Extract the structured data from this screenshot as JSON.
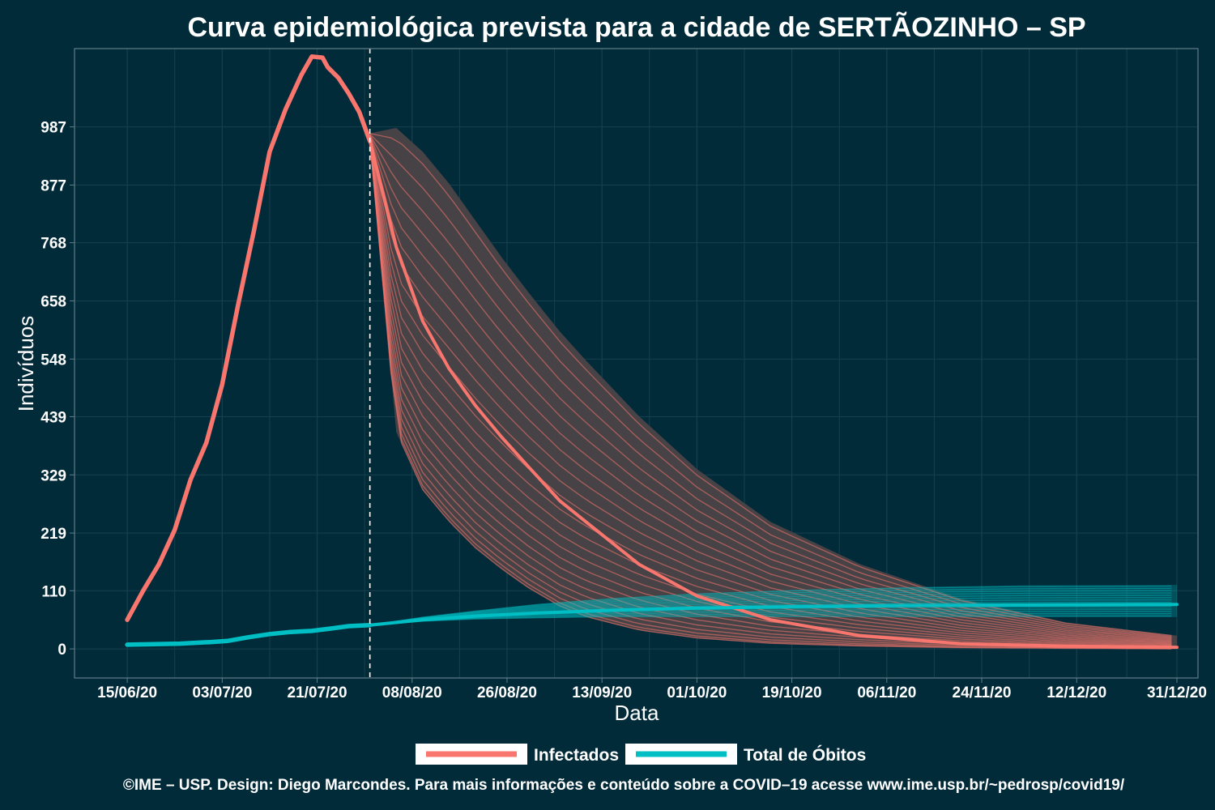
{
  "chart_data": {
    "type": "line",
    "title": "Curva epidemiológica prevista para a cidade de SERTÃOZINHO – SP",
    "xlabel": "Data",
    "ylabel": "Indivíduos",
    "x_ticks": [
      "15/06/20",
      "03/07/20",
      "21/07/20",
      "08/08/20",
      "26/08/20",
      "13/09/20",
      "01/10/20",
      "19/10/20",
      "06/11/20",
      "24/11/20",
      "12/12/20",
      "31/12/20"
    ],
    "y_ticks": [
      "0",
      "110",
      "219",
      "329",
      "439",
      "548",
      "658",
      "768",
      "877",
      "987"
    ],
    "ylim": [
      -55,
      1135
    ],
    "xlim": [
      "2020-06-05",
      "2021-01-04"
    ],
    "grid": true,
    "forecast_start": "2020-07-31",
    "colors": {
      "background": "#022b3a",
      "infectados": "#f8766d",
      "obitos": "#00bfc4",
      "band": "#4a4347",
      "grid": "#17404e",
      "panel_border": "#5f7e89"
    },
    "legend": {
      "position": "bottom",
      "items": [
        {
          "name": "Infectados",
          "color": "#f8766d"
        },
        {
          "name": "Total de Óbitos",
          "color": "#00bfc4"
        }
      ]
    },
    "series": [
      {
        "name": "Infectados",
        "type": "observed",
        "x": [
          "2020-06-15",
          "2020-06-18",
          "2020-06-21",
          "2020-06-24",
          "2020-06-27",
          "2020-06-30",
          "2020-07-03",
          "2020-07-06",
          "2020-07-09",
          "2020-07-12",
          "2020-07-15",
          "2020-07-18",
          "2020-07-20",
          "2020-07-22",
          "2020-07-23",
          "2020-07-25",
          "2020-07-27",
          "2020-07-29",
          "2020-07-31"
        ],
        "y": [
          55,
          110,
          160,
          225,
          320,
          390,
          500,
          650,
          790,
          940,
          1020,
          1085,
          1120,
          1118,
          1100,
          1080,
          1050,
          1015,
          960
        ]
      },
      {
        "name": "Infectados",
        "type": "forecast-median",
        "x": [
          "2020-07-31",
          "2020-08-05",
          "2020-08-10",
          "2020-08-15",
          "2020-08-20",
          "2020-08-25",
          "2020-08-30",
          "2020-09-05",
          "2020-09-10",
          "2020-09-20",
          "2020-10-01",
          "2020-10-15",
          "2020-11-01",
          "2020-11-20",
          "2020-12-10",
          "2020-12-31"
        ],
        "y": [
          960,
          760,
          620,
          530,
          460,
          400,
          345,
          280,
          240,
          160,
          100,
          55,
          25,
          10,
          5,
          3
        ]
      },
      {
        "name": "Total de Óbitos",
        "type": "observed",
        "x": [
          "2020-06-15",
          "2020-06-20",
          "2020-06-25",
          "2020-07-01",
          "2020-07-04",
          "2020-07-08",
          "2020-07-12",
          "2020-07-16",
          "2020-07-20",
          "2020-07-24",
          "2020-07-27",
          "2020-07-31"
        ],
        "y": [
          8,
          9,
          10,
          13,
          15,
          22,
          28,
          32,
          34,
          39,
          43,
          45
        ]
      },
      {
        "name": "Total de Óbitos",
        "type": "forecast-median",
        "x": [
          "2020-07-31",
          "2020-08-10",
          "2020-08-20",
          "2020-09-01",
          "2020-09-15",
          "2020-10-01",
          "2020-10-20",
          "2020-11-10",
          "2020-12-01",
          "2020-12-31"
        ],
        "y": [
          45,
          55,
          62,
          68,
          73,
          77,
          80,
          82,
          83,
          84
        ]
      }
    ],
    "bands": [
      {
        "name": "Infectados",
        "x": [
          "2020-07-31",
          "2020-08-05",
          "2020-08-10",
          "2020-08-15",
          "2020-08-20",
          "2020-08-25",
          "2020-08-30",
          "2020-09-05",
          "2020-09-10",
          "2020-09-20",
          "2020-10-01",
          "2020-10-15",
          "2020-11-01",
          "2020-11-20",
          "2020-12-10",
          "2020-12-31"
        ],
        "lower": [
          960,
          410,
          300,
          240,
          190,
          150,
          115,
          80,
          60,
          35,
          20,
          10,
          5,
          2,
          1,
          0
        ],
        "upper": [
          975,
          985,
          940,
          880,
          810,
          740,
          675,
          600,
          545,
          440,
          340,
          240,
          160,
          95,
          50,
          25
        ]
      },
      {
        "name": "Total de Óbitos",
        "x": [
          "2020-07-31",
          "2020-08-10",
          "2020-08-20",
          "2020-09-01",
          "2020-09-15",
          "2020-10-01",
          "2020-10-20",
          "2020-11-10",
          "2020-12-01",
          "2020-12-31"
        ],
        "lower": [
          45,
          52,
          56,
          58,
          60,
          60,
          60,
          60,
          60,
          60
        ],
        "upper": [
          45,
          60,
          72,
          85,
          96,
          105,
          112,
          117,
          120,
          121
        ]
      }
    ],
    "footer": "©IME – USP. Design: Diego Marcondes. Para mais informações e conteúdo sobre a COVID–19 acesse www.ime.usp.br/~pedrosp/covid19/"
  }
}
